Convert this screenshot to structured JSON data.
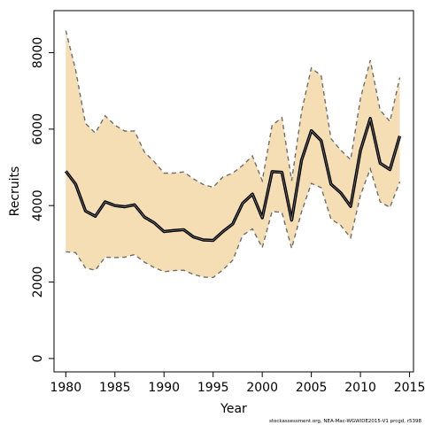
{
  "chart_data": {
    "type": "area",
    "title": "",
    "xlabel": "Year",
    "ylabel": "Recruits",
    "xlim": [
      1978.8,
      2015.4
    ],
    "ylim": [
      -350,
      9100
    ],
    "xticks": [
      1980,
      1985,
      1990,
      1995,
      2000,
      2005,
      2010,
      2015
    ],
    "yticks": [
      0,
      2000,
      4000,
      6000,
      8000
    ],
    "grid": false,
    "x": [
      1980,
      1981,
      1982,
      1983,
      1984,
      1985,
      1986,
      1987,
      1988,
      1989,
      1990,
      1991,
      1992,
      1993,
      1994,
      1995,
      1996,
      1997,
      1998,
      1999,
      2000,
      2001,
      2002,
      2003,
      2004,
      2005,
      2006,
      2007,
      2008,
      2009,
      2010,
      2011,
      2012,
      2013,
      2014
    ],
    "series": [
      {
        "role": "upper",
        "values": [
          8580,
          7550,
          6150,
          5900,
          6350,
          6100,
          5950,
          5950,
          5400,
          5150,
          4850,
          4850,
          4880,
          4700,
          4550,
          4480,
          4750,
          4850,
          5050,
          5300,
          4650,
          6100,
          6300,
          4650,
          6450,
          7600,
          7400,
          5750,
          5450,
          5200,
          6800,
          7800,
          6500,
          6200,
          7350
        ]
      },
      {
        "role": "estimate",
        "values": [
          4900,
          4560,
          3860,
          3720,
          4100,
          4000,
          3970,
          4020,
          3700,
          3550,
          3320,
          3350,
          3370,
          3180,
          3100,
          3090,
          3320,
          3520,
          4060,
          4300,
          3680,
          4890,
          4870,
          3620,
          5180,
          5960,
          5700,
          4560,
          4330,
          3980,
          5440,
          6280,
          5110,
          4940,
          5820
        ]
      },
      {
        "role": "lower",
        "values": [
          2790,
          2770,
          2370,
          2310,
          2650,
          2640,
          2650,
          2720,
          2520,
          2380,
          2270,
          2300,
          2310,
          2200,
          2130,
          2120,
          2320,
          2570,
          3220,
          3390,
          2900,
          3850,
          3820,
          2880,
          3830,
          4580,
          4470,
          3650,
          3480,
          3160,
          4270,
          4960,
          4100,
          3950,
          4620
        ]
      }
    ],
    "colors": {
      "band": "#f5deb3",
      "estimate": "#000000",
      "bounds": "#6e6e6e"
    }
  },
  "credit": "stockassessment.org, NEA-Mac-WGWIDE2015-V1  prcgd, r5398"
}
